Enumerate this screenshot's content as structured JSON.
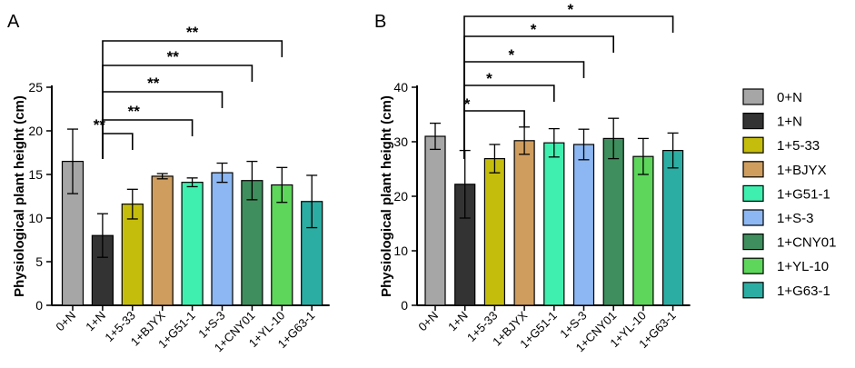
{
  "chart_data": [
    {
      "type": "bar",
      "panel": "A",
      "ylabel": "Physiological plant height (cm)",
      "xlabel": "",
      "ylim": [
        0,
        25
      ],
      "yticks": [
        0,
        5,
        10,
        15,
        20,
        25
      ],
      "categories": [
        "0+N",
        "1+N",
        "1+5-33",
        "1+BJYX",
        "1+G51-1",
        "1+S-3",
        "1+CNY01",
        "1+YL-10",
        "1+G63-1"
      ],
      "values": [
        16.5,
        8.0,
        11.6,
        14.8,
        14.1,
        15.2,
        14.3,
        13.8,
        11.9
      ],
      "errors": [
        3.7,
        2.5,
        1.7,
        0.3,
        0.5,
        1.1,
        2.2,
        2.0,
        3.0
      ],
      "significance": [
        {
          "from": "1+N",
          "to": "1+5-33",
          "label": "**"
        },
        {
          "from": "1+N",
          "to": "1+G51-1",
          "label": "**"
        },
        {
          "from": "1+N",
          "to": "1+S-3",
          "label": "**"
        },
        {
          "from": "1+N",
          "to": "1+CNY01",
          "label": "**"
        },
        {
          "from": "1+N",
          "to": "1+YL-10",
          "label": "**"
        }
      ]
    },
    {
      "type": "bar",
      "panel": "B",
      "ylabel": "Physiological plant height (cm)",
      "xlabel": "",
      "ylim": [
        0,
        40
      ],
      "yticks": [
        0,
        10,
        20,
        30,
        40
      ],
      "categories": [
        "0+N",
        "1+N",
        "1+5-33",
        "1+BJYX",
        "1+G51-1",
        "1+S-3",
        "1+CNY01",
        "1+YL-10",
        "1+G63-1"
      ],
      "values": [
        31.0,
        22.2,
        26.9,
        30.2,
        29.8,
        29.5,
        30.6,
        27.3,
        28.4
      ],
      "errors": [
        2.4,
        6.2,
        2.6,
        2.5,
        2.6,
        2.8,
        3.7,
        3.3,
        3.2
      ],
      "significance": [
        {
          "from": "1+N",
          "to": "1+BJYX",
          "label": "*"
        },
        {
          "from": "1+N",
          "to": "1+G51-1",
          "label": "*"
        },
        {
          "from": "1+N",
          "to": "1+S-3",
          "label": "*"
        },
        {
          "from": "1+N",
          "to": "1+CNY01",
          "label": "*"
        },
        {
          "from": "1+N",
          "to": "1+G63-1",
          "label": "*"
        }
      ]
    }
  ],
  "legend": [
    {
      "label": "0+N",
      "color": "#a6a6a6"
    },
    {
      "label": "1+N",
      "color": "#333333"
    },
    {
      "label": "1+5-33",
      "color": "#c5bd0b"
    },
    {
      "label": "1+BJYX",
      "color": "#cf9d5e"
    },
    {
      "label": "1+G51-1",
      "color": "#3fefb0"
    },
    {
      "label": "1+S-3",
      "color": "#8cb7f2"
    },
    {
      "label": "1+CNY01",
      "color": "#3f8e5d"
    },
    {
      "label": "1+YL-10",
      "color": "#5dd65b"
    },
    {
      "label": "1+G63-1",
      "color": "#2cada3"
    }
  ]
}
